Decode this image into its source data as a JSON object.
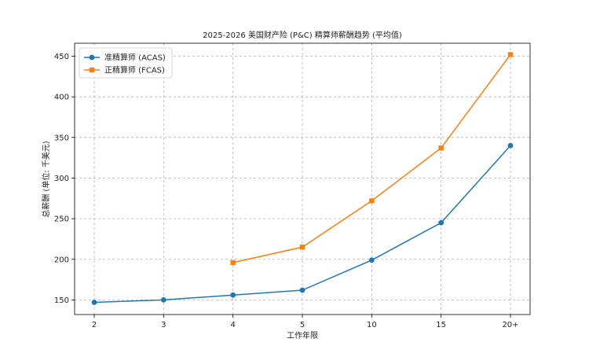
{
  "chart_data": {
    "type": "line",
    "title": "2025-2026 美国财产险 (P&C) 精算师薪酬趋势 (平均值)",
    "xlabel": "工作年限",
    "ylabel": "总薪酬 (单位: 千美元)",
    "categories": [
      "2",
      "3",
      "4",
      "5",
      "10",
      "15",
      "20+"
    ],
    "ylim": [
      132,
      466
    ],
    "yticks": [
      150,
      200,
      250,
      300,
      350,
      400,
      450
    ],
    "grid": true,
    "legend_position": "top-left",
    "series": [
      {
        "name": "准精算师 (ACAS)",
        "color": "#1f77b4",
        "marker": "circle",
        "values": [
          147,
          150,
          156,
          162,
          199,
          245,
          340
        ]
      },
      {
        "name": "正精算师 (FCAS)",
        "color": "#ff7f0e",
        "marker": "square",
        "values": [
          null,
          null,
          196,
          215,
          272,
          337,
          452
        ]
      }
    ]
  }
}
